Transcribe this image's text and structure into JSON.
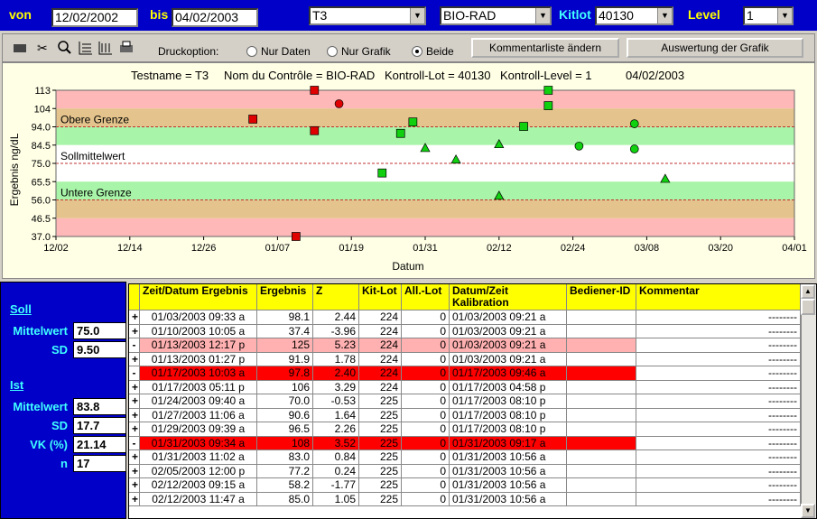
{
  "filter": {
    "from_label": "von",
    "from": "12/02/2002",
    "to_label": "bis",
    "to": "04/02/2003",
    "test": "T3",
    "control": "BIO-RAD",
    "kitlot_label": "Kitlot",
    "kitlot": "40130",
    "level_label": "Level",
    "level": "1"
  },
  "toolbar": {
    "print_label": "Druckoption:",
    "options": [
      "Nur Daten",
      "Nur Grafik",
      "Beide"
    ],
    "selected": 2,
    "buttons": [
      "Kommentarliste ändern",
      "Auswertung der Grafik"
    ]
  },
  "chart_data": {
    "type": "scatter",
    "info": [
      "Testname = T3",
      "Nom du Contrôle = BIO-RAD",
      "Kontroll-Lot = 40130",
      "Kontroll-Level = 1",
      "04/02/2003"
    ],
    "x_label": "Datum",
    "y_label": "Ergebnis ng/dL",
    "xlim": [
      0,
      120
    ],
    "xticks": [
      {
        "value": 0,
        "label": "12/02"
      },
      {
        "value": 12,
        "label": "12/14"
      },
      {
        "value": 24,
        "label": "12/26"
      },
      {
        "value": 36,
        "label": "01/07"
      },
      {
        "value": 48,
        "label": "01/19"
      },
      {
        "value": 60,
        "label": "01/31"
      },
      {
        "value": 72,
        "label": "02/12"
      },
      {
        "value": 84,
        "label": "02/24"
      },
      {
        "value": 96,
        "label": "03/08"
      },
      {
        "value": 108,
        "label": "03/20"
      },
      {
        "value": 120,
        "label": "04/01"
      }
    ],
    "ylim": [
      37,
      113
    ],
    "yticks": [
      113,
      {
        "value": 103.5,
        "label": "104"
      },
      {
        "value": 94,
        "label": "94.0"
      },
      84.5,
      {
        "value": 75,
        "label": "75.0"
      },
      65.5,
      {
        "value": 56,
        "label": "56.0"
      },
      46.5,
      {
        "value": 37,
        "label": "37.0"
      }
    ],
    "bands": [
      {
        "from": 103.5,
        "to": 113,
        "color": "#ffb8b8"
      },
      {
        "from": 94,
        "to": 103.5,
        "color": "#e4c48c"
      },
      {
        "from": 84.5,
        "to": 94,
        "color": "#a8f4a8"
      },
      {
        "from": 65.5,
        "to": 84.5,
        "color": "#ffffff"
      },
      {
        "from": 56,
        "to": 65.5,
        "color": "#a8f4a8"
      },
      {
        "from": 46.5,
        "to": 56,
        "color": "#e4c48c"
      },
      {
        "from": 37,
        "to": 46.5,
        "color": "#ffb8b8"
      }
    ],
    "limits": [
      {
        "value": 94,
        "label": "Obere Grenze"
      },
      {
        "value": 75,
        "label": "Sollmittelwert"
      },
      {
        "value": 56,
        "label": "Untere Grenze"
      }
    ],
    "series": [
      {
        "marker": "square",
        "color": "#e00000",
        "x": [
          32,
          39,
          42,
          42
        ],
        "values": [
          98,
          37,
          113,
          92
        ]
      },
      {
        "marker": "circle",
        "color": "#e00000",
        "x": [
          46
        ],
        "values": [
          106
        ]
      },
      {
        "marker": "square",
        "color": "#10d010",
        "x": [
          53,
          56,
          58,
          76,
          80,
          80
        ],
        "values": [
          70,
          90.6,
          96.5,
          94.2,
          113,
          105
        ]
      },
      {
        "marker": "triangle",
        "color": "#10d010",
        "x": [
          60,
          65,
          72,
          72,
          99
        ],
        "values": [
          83,
          77,
          85,
          58.2,
          67
        ]
      },
      {
        "marker": "circle",
        "color": "#10d010",
        "x": [
          85,
          94,
          94
        ],
        "values": [
          84,
          95.6,
          82.5
        ]
      }
    ]
  },
  "stats": {
    "target_title": "Soll",
    "target": [
      {
        "label": "Mittelwert",
        "value": "75.0"
      },
      {
        "label": "SD",
        "value": "9.50"
      }
    ],
    "actual_title": "Ist",
    "actual": [
      {
        "label": "Mittelwert",
        "value": "83.8"
      },
      {
        "label": "SD",
        "value": "17.7"
      },
      {
        "label": "VK (%)",
        "value": "21.14"
      },
      {
        "label": "n",
        "value": "17"
      }
    ]
  },
  "table": {
    "columns": [
      "Zeit/Datum Ergebnis",
      "Ergebnis",
      "Z",
      "Kit-Lot",
      "All.-Lot",
      "Datum/Zeit Kalibration",
      "Bediener-ID",
      "Kommentar"
    ],
    "rows": [
      {
        "cells": [
          "+",
          "01/03/2003 09:33 a",
          "98.1",
          "2.44",
          "224",
          "0",
          "01/03/2003 09:21 a",
          "--------"
        ]
      },
      {
        "cells": [
          "+",
          "01/10/2003 10:05 a",
          "37.4",
          "-3.96",
          "224",
          "0",
          "01/03/2003 09:21 a",
          "--------"
        ]
      },
      {
        "cells": [
          "-",
          "01/13/2003 12:17 p",
          "125",
          "5.23",
          "224",
          "0",
          "01/03/2003 09:21 a",
          "--------"
        ],
        "highlight": "#ffb0b0"
      },
      {
        "cells": [
          "+",
          "01/13/2003 01:27 p",
          "91.9",
          "1.78",
          "224",
          "0",
          "01/03/2003 09:21 a",
          "--------"
        ]
      },
      {
        "cells": [
          "-",
          "01/17/2003 10:03 a",
          "97.8",
          "2.40",
          "224",
          "0",
          "01/17/2003 09:46 a",
          "--------"
        ],
        "highlight": "#ff0000"
      },
      {
        "cells": [
          "+",
          "01/17/2003 05:11 p",
          "106",
          "3.29",
          "224",
          "0",
          "01/17/2003 04:58 p",
          "--------"
        ]
      },
      {
        "cells": [
          "+",
          "01/24/2003 09:40 a",
          "70.0",
          "-0.53",
          "225",
          "0",
          "01/17/2003 08:10 p",
          "--------"
        ]
      },
      {
        "cells": [
          "+",
          "01/27/2003 11:06 a",
          "90.6",
          "1.64",
          "225",
          "0",
          "01/17/2003 08:10 p",
          "--------"
        ]
      },
      {
        "cells": [
          "+",
          "01/29/2003 09:39 a",
          "96.5",
          "2.26",
          "225",
          "0",
          "01/17/2003 08:10 p",
          "--------"
        ]
      },
      {
        "cells": [
          "-",
          "01/31/2003 09:34 a",
          "108",
          "3.52",
          "225",
          "0",
          "01/31/2003 09:17 a",
          "--------"
        ],
        "highlight": "#ff0000"
      },
      {
        "cells": [
          "+",
          "01/31/2003 11:02 a",
          "83.0",
          "0.84",
          "225",
          "0",
          "01/31/2003 10:56 a",
          "--------"
        ]
      },
      {
        "cells": [
          "+",
          "02/05/2003 12:00 p",
          "77.2",
          "0.24",
          "225",
          "0",
          "01/31/2003 10:56 a",
          "--------"
        ]
      },
      {
        "cells": [
          "+",
          "02/12/2003 09:15 a",
          "58.2",
          "-1.77",
          "225",
          "0",
          "01/31/2003 10:56 a",
          "--------"
        ]
      },
      {
        "cells": [
          "+",
          "02/12/2003 11:47 a",
          "85.0",
          "1.05",
          "225",
          "0",
          "01/31/2003 10:56 a",
          "--------"
        ]
      }
    ]
  }
}
